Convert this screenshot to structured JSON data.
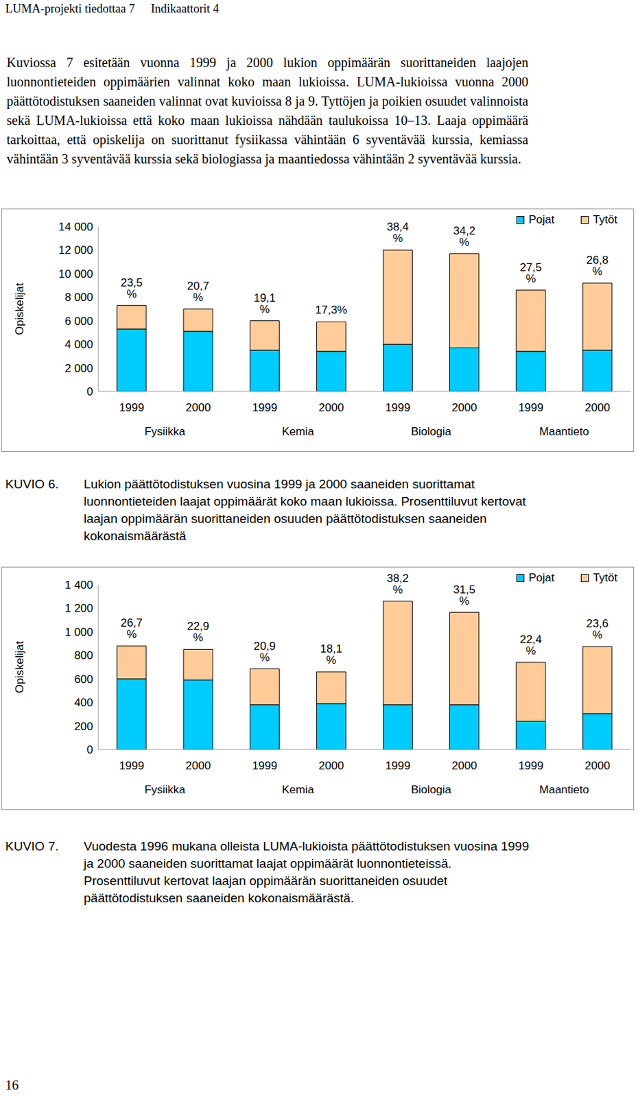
{
  "header": {
    "left": "LUMA-projekti tiedottaa 7",
    "right": "Indikaattorit 4"
  },
  "paragraph": "Kuviossa 7 esitetään vuonna 1999 ja 2000 lukion oppimäärän suorittaneiden laajojen luonnontieteiden oppimäärien valinnat koko maan lukioissa. LUMA-lukioissa vuonna 2000 päättötodistuksen saaneiden valinnat ovat kuvioissa 8 ja 9. Tyttöjen ja poikien osuudet valinnoista sekä LUMA-lukioissa että koko maan lukioissa nähdään taulukoissa 10–13. Laaja oppimäärä tarkoittaa, että opiskelija on suorittanut fysiikassa vähintään 6 syventävää kurssia, kemiassa vähintään 3 syventävää kurssia sekä biologiassa ja maantiedossa vähintään 2 syventävää kurssia.",
  "chart_data": [
    {
      "type": "bar",
      "stacked": true,
      "grid": false,
      "legend": "top right",
      "y_label": "Opiskelijat",
      "categories": [
        "1999",
        "2000",
        "1999",
        "2000",
        "1999",
        "2000",
        "1999",
        "2000"
      ],
      "groups": [
        "Fysiikka",
        "Kemia",
        "Biologia",
        "Maantieto"
      ],
      "series": [
        {
          "name": "Pojat",
          "color": "#00ccff",
          "values": [
            5300,
            5100,
            3500,
            3400,
            4000,
            3700,
            3400,
            3500
          ]
        },
        {
          "name": "Tytöt",
          "color": "#ffcc99",
          "values": [
            2000,
            1900,
            2500,
            2500,
            8000,
            8000,
            5200,
            5700
          ]
        }
      ],
      "annotations": [
        "23,5 %",
        "20,7 %",
        "19,1 %",
        "17,3%",
        "38,4 %",
        "34,2 %",
        "27,5 %",
        "26,8 %"
      ],
      "ylim": [
        0,
        14000
      ],
      "yticks": [
        0,
        {
          "value": 2000,
          "label": "2 000"
        },
        {
          "value": 4000,
          "label": "4 000"
        },
        {
          "value": 6000,
          "label": "6 000"
        },
        {
          "value": 8000,
          "label": "8 000"
        },
        {
          "value": 10000,
          "label": "10 000"
        },
        {
          "value": 12000,
          "label": "12 000"
        },
        {
          "value": 14000,
          "label": "14 000"
        }
      ],
      "caption": {
        "label": "KUVIO 6.",
        "text": "Lukion päättötodistuksen vuosina 1999 ja 2000 saaneiden suorittamat luonnontieteiden laajat oppimäärät koko maan lukioissa. Prosenttiluvut kertovat laajan oppimäärän suorittaneiden osuuden päättötodistuksen saaneiden kokonaismäärästä"
      }
    },
    {
      "type": "bar",
      "stacked": true,
      "grid": false,
      "legend": "top right",
      "y_label": "Opiskelijat",
      "categories": [
        "1999",
        "2000",
        "1999",
        "2000",
        "1999",
        "2000",
        "1999",
        "2000"
      ],
      "groups": [
        "Fysiikka",
        "Kemia",
        "Biologia",
        "Maantieto"
      ],
      "series": [
        {
          "name": "Pojat",
          "color": "#00ccff",
          "values": [
            600,
            590,
            380,
            390,
            380,
            380,
            240,
            305
          ]
        },
        {
          "name": "Tytöt",
          "color": "#ffcc99",
          "values": [
            280,
            260,
            305,
            270,
            880,
            785,
            500,
            570
          ]
        }
      ],
      "annotations": [
        "26,7 %",
        "22,9 %",
        "20,9 %",
        "18,1 %",
        "38,2 %",
        "31,5 %",
        "22,4 %",
        "23,6 %"
      ],
      "ylim": [
        0,
        1400
      ],
      "yticks": [
        0,
        200,
        400,
        600,
        800,
        {
          "value": 1000,
          "label": "1 000"
        },
        {
          "value": 1200,
          "label": "1 200"
        },
        {
          "value": 1400,
          "label": "1 400"
        }
      ],
      "caption": {
        "label": "KUVIO 7.",
        "text": "Vuodesta 1996 mukana olleista LUMA-lukioista päättötodistuksen vuosina 1999 ja 2000 saaneiden suorittamat laajat oppimäärät luonnontieteissä. Prosenttiluvut kertovat laajan oppimäärän suorittaneiden osuudet päättötodistuksen saaneiden kokonaismäärästä."
      }
    }
  ],
  "page_number": "16"
}
